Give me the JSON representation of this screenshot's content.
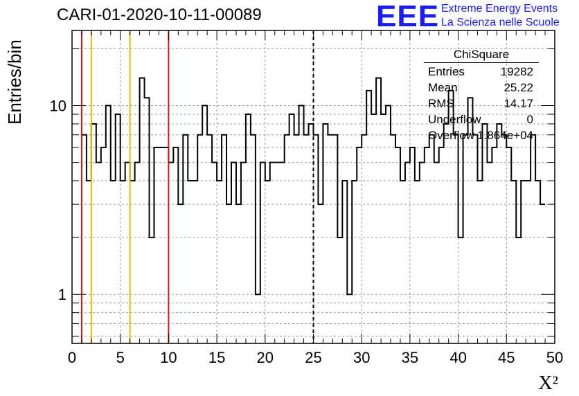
{
  "title": "CARI-01-2020-10-11-00089",
  "logo": {
    "mark": "EEE",
    "line1": "Extreme Energy Events",
    "line2": "La Scienza nelle Scuole"
  },
  "colors": {
    "red": "#dd1111",
    "orange": "#f0b400",
    "histogram": "#000000",
    "grid": "#9a9a9a",
    "logo": "#1a1aff"
  },
  "stats": {
    "title": "ChiSquare",
    "rows": [
      {
        "key": "Entries",
        "value": "19282"
      },
      {
        "key": "Mean",
        "value": "25.22"
      },
      {
        "key": "RMS",
        "value": "14.17"
      },
      {
        "key": "Underflow",
        "value": "0"
      },
      {
        "key": "Overflow",
        "value": "1.864e+04"
      }
    ]
  },
  "chart_data": {
    "type": "histogram",
    "xlabel": "X²",
    "ylabel": "Entries/bin",
    "xlim": [
      0,
      50
    ],
    "ylim": [
      0.55,
      25
    ],
    "yscale": "log",
    "grid": true,
    "xticks": [
      0,
      5,
      10,
      15,
      20,
      25,
      30,
      35,
      40,
      45,
      50
    ],
    "yticks": [
      1,
      10
    ],
    "bin_width": 0.5,
    "bin_start": 1.0,
    "counts": [
      7,
      4,
      8,
      5,
      6,
      10,
      4,
      9,
      4,
      5,
      4,
      5,
      14,
      11,
      2,
      6,
      6,
      6,
      5,
      6,
      3,
      7,
      4,
      4,
      7,
      10,
      7,
      5,
      4,
      7,
      3,
      5,
      3,
      5,
      9,
      7,
      1,
      5,
      4,
      5,
      5,
      5,
      7,
      9,
      7,
      10,
      7,
      8,
      7,
      3,
      8,
      7,
      7,
      2,
      4,
      1,
      4,
      6,
      7,
      12,
      9,
      14,
      9,
      10,
      7,
      6,
      4,
      5,
      6,
      4,
      5,
      6,
      7,
      5,
      6,
      8,
      12,
      7,
      2,
      7,
      11,
      7,
      4,
      8,
      5,
      6,
      8,
      7,
      6,
      4,
      2,
      4,
      4,
      7,
      4,
      3
    ],
    "vertical_lines": [
      {
        "x": 1,
        "color": "red",
        "style": "solid"
      },
      {
        "x": 2,
        "color": "orange",
        "style": "solid"
      },
      {
        "x": 6,
        "color": "orange",
        "style": "solid"
      },
      {
        "x": 10,
        "color": "red",
        "style": "solid"
      },
      {
        "x": 25,
        "color": "black",
        "style": "dashed"
      }
    ]
  }
}
